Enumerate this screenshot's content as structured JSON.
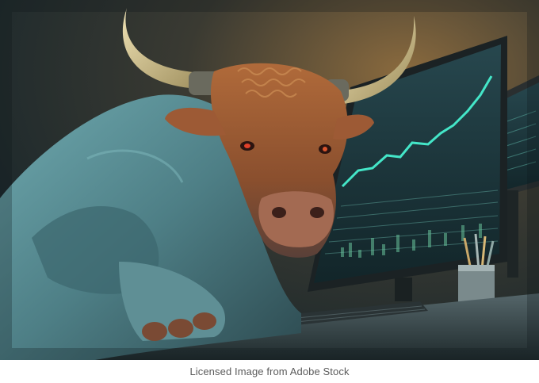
{
  "caption": "Licensed Image from Adobe Stock",
  "image": {
    "subject": "bull at computer trading desk",
    "colors": {
      "background_dark": "#18262b",
      "background_warm": "#8a6a3e",
      "bull_body": "#4e7f86",
      "bull_head": "#8a4f2e",
      "horn": "#c9b98a",
      "screen": "#1f3d44",
      "chart_line": "#44e6c8",
      "desk": "#39474a"
    }
  }
}
